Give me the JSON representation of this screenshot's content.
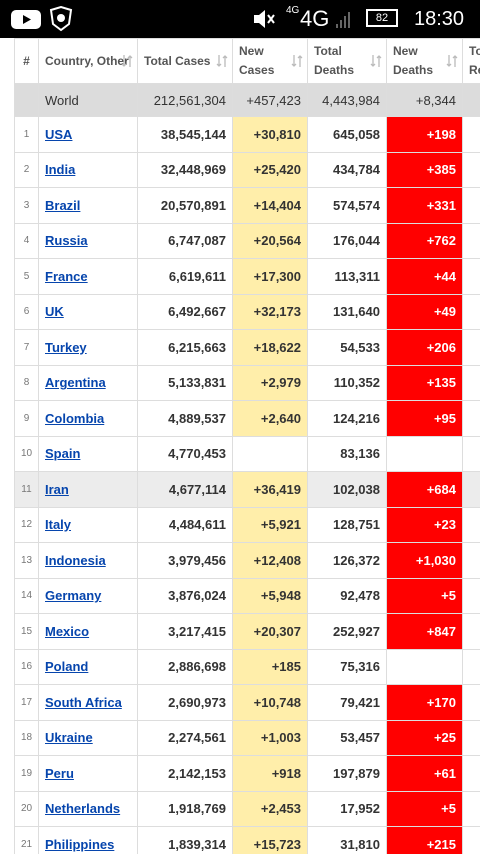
{
  "status_bar": {
    "network_small": "4G",
    "network": "4G",
    "battery": "82",
    "time": "18:30"
  },
  "table": {
    "headers": [
      "#",
      "Country, Other",
      "Total Cases",
      "New Cases",
      "Total Deaths",
      "New Deaths",
      "To Re"
    ],
    "world": [
      "World",
      "212,561,304",
      "+457,423",
      "4,443,984",
      "+8,344"
    ],
    "rows": [
      [
        "1",
        "USA",
        "38,545,144",
        "+30,810",
        "645,058",
        "+198"
      ],
      [
        "2",
        "India",
        "32,448,969",
        "+25,420",
        "434,784",
        "+385"
      ],
      [
        "3",
        "Brazil",
        "20,570,891",
        "+14,404",
        "574,574",
        "+331"
      ],
      [
        "4",
        "Russia",
        "6,747,087",
        "+20,564",
        "176,044",
        "+762"
      ],
      [
        "5",
        "France",
        "6,619,611",
        "+17,300",
        "113,311",
        "+44"
      ],
      [
        "6",
        "UK",
        "6,492,667",
        "+32,173",
        "131,640",
        "+49"
      ],
      [
        "7",
        "Turkey",
        "6,215,663",
        "+18,622",
        "54,533",
        "+206"
      ],
      [
        "8",
        "Argentina",
        "5,133,831",
        "+2,979",
        "110,352",
        "+135"
      ],
      [
        "9",
        "Colombia",
        "4,889,537",
        "+2,640",
        "124,216",
        "+95"
      ],
      [
        "10",
        "Spain",
        "4,770,453",
        null,
        "83,136",
        null
      ],
      [
        "11",
        "Iran",
        "4,677,114",
        "+36,419",
        "102,038",
        "+684"
      ],
      [
        "12",
        "Italy",
        "4,484,611",
        "+5,921",
        "128,751",
        "+23"
      ],
      [
        "13",
        "Indonesia",
        "3,979,456",
        "+12,408",
        "126,372",
        "+1,030"
      ],
      [
        "14",
        "Germany",
        "3,876,024",
        "+5,948",
        "92,478",
        "+5"
      ],
      [
        "15",
        "Mexico",
        "3,217,415",
        "+20,307",
        "252,927",
        "+847"
      ],
      [
        "16",
        "Poland",
        "2,886,698",
        "+185",
        "75,316",
        null
      ],
      [
        "17",
        "South Africa",
        "2,690,973",
        "+10,748",
        "79,421",
        "+170"
      ],
      [
        "18",
        "Ukraine",
        "2,274,561",
        "+1,003",
        "53,457",
        "+25"
      ],
      [
        "19",
        "Peru",
        "2,142,153",
        "+918",
        "197,879",
        "+61"
      ],
      [
        "20",
        "Netherlands",
        "1,918,769",
        "+2,453",
        "17,952",
        "+5"
      ],
      [
        "21",
        "Philippines",
        "1,839,314",
        "+15,723",
        "31,810",
        "+215"
      ]
    ]
  }
}
